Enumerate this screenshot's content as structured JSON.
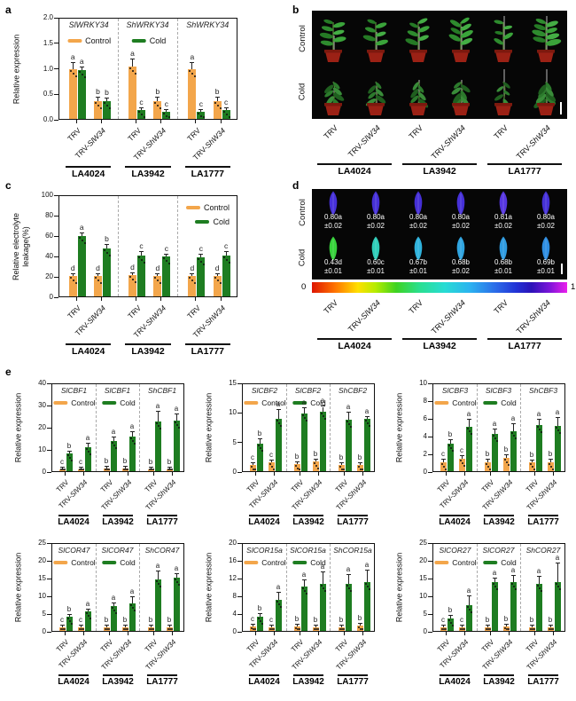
{
  "figure": {
    "panels": {
      "a": "a",
      "b": "b",
      "c": "c",
      "d": "d",
      "e": "e"
    }
  },
  "colors": {
    "control": "#F3A64B",
    "cold": "#1E7D21",
    "leaf_control": [
      "#4630d8",
      "#4630d8",
      "#452fd6",
      "#4630d8",
      "#5636e0",
      "#4531d8"
    ],
    "leaf_cold": [
      "#37d13b",
      "#2fcdb9",
      "#2fb2dc",
      "#2fa4e0",
      "#2f9be0",
      "#2f8ee2"
    ]
  },
  "legend": {
    "control": "Control",
    "cold": "Cold"
  },
  "treatments": {
    "labels": [
      "TRV",
      "TRV-SlW34",
      "TRV",
      "TRV-ShW34",
      "TRV",
      "TRV-ShW34"
    ],
    "groups": [
      "LA4024",
      "LA3942",
      "LA1777"
    ]
  },
  "panel_b": {
    "row_labels": [
      "Control",
      "Cold"
    ]
  },
  "panel_d": {
    "row_labels": [
      "Control",
      "Cold"
    ],
    "scale_min": "0",
    "scale_max": "1",
    "control_values": [
      "0.80a",
      "0.80a",
      "0.80a",
      "0.80a",
      "0.81a",
      "0.80a"
    ],
    "control_errors": [
      "±0.02",
      "±0.02",
      "±0.02",
      "±0.02",
      "±0.02",
      "±0.02"
    ],
    "cold_values": [
      "0.43d",
      "0.60c",
      "0.67b",
      "0.68b",
      "0.68b",
      "0.69b"
    ],
    "cold_errors": [
      "±0.01",
      "±0.01",
      "±0.01",
      "±0.02",
      "±0.01",
      "±0.01"
    ]
  },
  "chart_data": [
    {
      "id": "a",
      "panel": "a",
      "type": "bar",
      "section_headers": [
        "SlWRKY34",
        "ShWRKY34",
        "ShWRKY34"
      ],
      "ylabel": [
        "Relative expression"
      ],
      "ylim": [
        0,
        2
      ],
      "yticks": [
        0,
        0.5,
        1,
        1.5,
        2
      ],
      "ytick_labels": [
        "0.0",
        "0.5",
        "1.0",
        "1.5",
        "2.0"
      ],
      "groups": [
        "LA4024",
        "LA3942",
        "LA1777"
      ],
      "categories": [
        "TRV",
        "TRV-SlW34",
        "TRV",
        "TRV-ShW34",
        "TRV",
        "TRV-ShW34"
      ],
      "legend_placement": "inline",
      "series": [
        {
          "name": "Control",
          "color_key": "control",
          "values": [
            1.0,
            0.35,
            1.05,
            0.35,
            1.0,
            0.35
          ],
          "errors": [
            0.12,
            0.08,
            0.13,
            0.08,
            0.11,
            0.08
          ],
          "letters": [
            "a",
            "b",
            "a",
            "b",
            "a",
            "b"
          ]
        },
        {
          "name": "Cold",
          "color_key": "cold",
          "values": [
            0.98,
            0.35,
            0.17,
            0.15,
            0.15,
            0.17
          ],
          "errors": [
            0.05,
            0.06,
            0.03,
            0.03,
            0.03,
            0.03
          ],
          "letters": [
            "a",
            "b",
            "c",
            "c",
            "c",
            "c"
          ]
        }
      ]
    },
    {
      "id": "c",
      "panel": "c",
      "type": "bar",
      "section_headers": null,
      "ylabel": [
        "Relative electrolyte",
        "leakage(%)"
      ],
      "ylim": [
        0,
        100
      ],
      "yticks": [
        0,
        20,
        40,
        60,
        80,
        100
      ],
      "ytick_labels": [
        "0",
        "20",
        "40",
        "60",
        "80",
        "100"
      ],
      "groups": [
        "LA4024",
        "LA3942",
        "LA1777"
      ],
      "categories": [
        "TRV",
        "TRV-SlW34",
        "TRV",
        "TRV-ShW34",
        "TRV",
        "TRV-ShW34"
      ],
      "legend_placement": "right",
      "series": [
        {
          "name": "Control",
          "color_key": "control",
          "values": [
            20,
            20,
            21,
            20,
            20,
            20
          ],
          "errors": [
            2,
            2,
            2,
            2,
            2,
            2
          ],
          "letters": [
            "d",
            "d",
            "d",
            "d",
            "d",
            "d"
          ]
        },
        {
          "name": "Cold",
          "color_key": "cold",
          "values": [
            60,
            48,
            41,
            40,
            39,
            41
          ],
          "errors": [
            3,
            3,
            3,
            2,
            3,
            3
          ],
          "letters": [
            "a",
            "b",
            "c",
            "c",
            "c",
            "c"
          ]
        }
      ]
    },
    {
      "id": "e1",
      "panel": "e",
      "type": "bar",
      "section_headers": [
        "SlCBF1",
        "SlCBF1",
        "ShCBF1"
      ],
      "ylabel": [
        "Relative expression"
      ],
      "ylim": [
        0,
        40
      ],
      "yticks": [
        0,
        10,
        20,
        30,
        40
      ],
      "ytick_labels": [
        "0",
        "10",
        "20",
        "30",
        "40"
      ],
      "groups": [
        "LA4024",
        "LA3942",
        "LA1777"
      ],
      "categories": [
        "TRV",
        "TRV-SlW34",
        "TRV",
        "TRV-ShW34",
        "TRV",
        "TRV-ShW34"
      ],
      "legend_placement": "inline",
      "series": [
        {
          "name": "Control",
          "color_key": "control",
          "values": [
            1.0,
            1.0,
            1.2,
            1.2,
            1.0,
            1.0
          ],
          "errors": [
            0.4,
            0.4,
            0.4,
            0.4,
            0.4,
            0.4
          ],
          "letters": [
            "c",
            "c",
            "b",
            "b",
            "b",
            "b"
          ]
        },
        {
          "name": "Cold",
          "color_key": "cold",
          "values": [
            8.0,
            11.2,
            14.0,
            16.0,
            23.0,
            23.2
          ],
          "errors": [
            1.0,
            1.5,
            1.5,
            2.0,
            4.5,
            3.0
          ],
          "letters": [
            "b",
            "a",
            "a",
            "a",
            "a",
            "a"
          ]
        }
      ]
    },
    {
      "id": "e2",
      "panel": "e",
      "type": "bar",
      "section_headers": [
        "SlCBF2",
        "SlCBF2",
        "ShCBF2"
      ],
      "ylabel": [
        "Relative expression"
      ],
      "ylim": [
        0,
        15
      ],
      "yticks": [
        0,
        5,
        10,
        15
      ],
      "ytick_labels": [
        "0",
        "5",
        "10",
        "15"
      ],
      "groups": [
        "LA4024",
        "LA3942",
        "LA1777"
      ],
      "categories": [
        "TRV",
        "TRV-SlW34",
        "TRV",
        "TRV-ShW34",
        "TRV",
        "TRV-ShW34"
      ],
      "legend_placement": "inline",
      "series": [
        {
          "name": "Control",
          "color_key": "control",
          "values": [
            1.0,
            1.5,
            1.2,
            1.7,
            1.0,
            1.0
          ],
          "errors": [
            0.3,
            0.3,
            0.3,
            0.3,
            0.3,
            0.3
          ],
          "letters": [
            "c",
            "c",
            "b",
            "b",
            "b",
            "b"
          ]
        },
        {
          "name": "Cold",
          "color_key": "cold",
          "values": [
            4.8,
            9.0,
            10.0,
            10.2,
            8.9,
            9.0
          ],
          "errors": [
            0.7,
            1.5,
            0.8,
            0.9,
            1.2,
            0.3
          ],
          "letters": [
            "b",
            "a",
            "a",
            "a",
            "a",
            "a"
          ]
        }
      ]
    },
    {
      "id": "e3",
      "panel": "e",
      "type": "bar",
      "section_headers": [
        "SlCBF3",
        "SlCBF3",
        "ShCBF3"
      ],
      "ylabel": [
        "Relative expression"
      ],
      "ylim": [
        0,
        10
      ],
      "yticks": [
        0,
        2,
        4,
        6,
        8,
        10
      ],
      "ytick_labels": [
        "0",
        "2",
        "4",
        "6",
        "8",
        "10"
      ],
      "groups": [
        "LA4024",
        "LA3942",
        "LA1777"
      ],
      "categories": [
        "TRV",
        "TRV-SlW34",
        "TRV",
        "TRV-ShW34",
        "TRV",
        "TRV-ShW34"
      ],
      "legend_placement": "inline",
      "series": [
        {
          "name": "Control",
          "color_key": "control",
          "values": [
            1.0,
            1.4,
            1.0,
            1.5,
            1.0,
            1.0
          ],
          "errors": [
            0.3,
            0.3,
            0.3,
            0.3,
            0.2,
            0.3
          ],
          "letters": [
            "c",
            "c",
            "b",
            "b",
            "b",
            "b"
          ]
        },
        {
          "name": "Cold",
          "color_key": "cold",
          "values": [
            3.2,
            5.1,
            4.3,
            4.6,
            5.3,
            5.2
          ],
          "errors": [
            0.4,
            0.8,
            0.5,
            0.8,
            0.6,
            0.9
          ],
          "letters": [
            "b",
            "a",
            "a",
            "a",
            "a",
            "a"
          ]
        }
      ]
    },
    {
      "id": "e4",
      "panel": "e",
      "type": "bar",
      "section_headers": [
        "SlCOR47",
        "SlCOR47",
        "ShCOR47"
      ],
      "ylabel": [
        "Relative expression"
      ],
      "ylim": [
        0,
        25
      ],
      "yticks": [
        0,
        5,
        10,
        15,
        20,
        25
      ],
      "ytick_labels": [
        "0",
        "5",
        "10",
        "15",
        "20",
        "25"
      ],
      "groups": [
        "LA4024",
        "LA3942",
        "LA1777"
      ],
      "categories": [
        "TRV",
        "TRV-SlW34",
        "TRV",
        "TRV-ShW34",
        "TRV",
        "TRV-ShW34"
      ],
      "legend_placement": "inline",
      "series": [
        {
          "name": "Control",
          "color_key": "control",
          "values": [
            0.9,
            1.1,
            0.9,
            0.9,
            1.0,
            1.0
          ],
          "errors": [
            0.3,
            0.3,
            0.3,
            0.3,
            0.3,
            0.3
          ],
          "letters": [
            "c",
            "c",
            "b",
            "b",
            "b",
            "b"
          ]
        },
        {
          "name": "Cold",
          "color_key": "cold",
          "values": [
            4.0,
            5.6,
            7.2,
            7.8,
            14.8,
            15.2
          ],
          "errors": [
            0.6,
            0.5,
            0.7,
            2.0,
            2.2,
            1.2
          ],
          "letters": [
            "b",
            "a",
            "a",
            "a",
            "a",
            "a"
          ]
        }
      ]
    },
    {
      "id": "e5",
      "panel": "e",
      "type": "bar",
      "section_headers": [
        "SlCOR15a",
        "SlCOR15a",
        "ShCOR15a"
      ],
      "ylabel": [
        "Relative expression"
      ],
      "ylim": [
        0,
        20
      ],
      "yticks": [
        0,
        4,
        8,
        12,
        16,
        20
      ],
      "ytick_labels": [
        "0",
        "4",
        "8",
        "12",
        "16",
        "20"
      ],
      "groups": [
        "LA4024",
        "LA3942",
        "LA1777"
      ],
      "categories": [
        "TRV",
        "TRV-SlW34",
        "TRV",
        "TRV-ShW34",
        "TRV",
        "TRV-ShW34"
      ],
      "legend_placement": "inline",
      "series": [
        {
          "name": "Control",
          "color_key": "control",
          "values": [
            1.0,
            0.9,
            1.0,
            0.9,
            0.9,
            1.2
          ],
          "errors": [
            0.3,
            0.3,
            0.3,
            0.4,
            0.3,
            0.4
          ],
          "letters": [
            "c",
            "c",
            "b",
            "b",
            "b",
            "b"
          ]
        },
        {
          "name": "Cold",
          "color_key": "cold",
          "values": [
            3.3,
            7.1,
            10.3,
            10.9,
            10.9,
            11.3
          ],
          "errors": [
            0.6,
            1.6,
            1.4,
            2.6,
            2.0,
            2.6
          ],
          "letters": [
            "b",
            "a",
            "a",
            "a",
            "a",
            "a"
          ]
        }
      ]
    },
    {
      "id": "e6",
      "panel": "e",
      "type": "bar",
      "section_headers": [
        "SlCOR27",
        "SlCOR27",
        "ShCOR27"
      ],
      "ylabel": [
        "Relative expression"
      ],
      "ylim": [
        0,
        25
      ],
      "yticks": [
        0,
        5,
        10,
        15,
        20,
        25
      ],
      "ytick_labels": [
        "0",
        "5",
        "10",
        "15",
        "20",
        "25"
      ],
      "groups": [
        "LA4024",
        "LA3942",
        "LA1777"
      ],
      "categories": [
        "TRV",
        "TRV-SlW34",
        "TRV",
        "TRV-ShW34",
        "TRV",
        "TRV-ShW34"
      ],
      "legend_placement": "inline",
      "series": [
        {
          "name": "Control",
          "color_key": "control",
          "values": [
            1.0,
            1.0,
            1.1,
            1.2,
            1.0,
            1.1
          ],
          "errors": [
            0.3,
            0.3,
            0.3,
            0.3,
            0.3,
            0.3
          ],
          "letters": [
            "c",
            "c",
            "b",
            "b",
            "b",
            "b"
          ]
        },
        {
          "name": "Cold",
          "color_key": "cold",
          "values": [
            3.5,
            7.4,
            14.1,
            14.0,
            13.5,
            14.0
          ],
          "errors": [
            0.9,
            2.6,
            0.9,
            1.9,
            2.1,
            5.5
          ],
          "letters": [
            "b",
            "a",
            "a",
            "a",
            "a",
            "a"
          ]
        }
      ]
    }
  ]
}
